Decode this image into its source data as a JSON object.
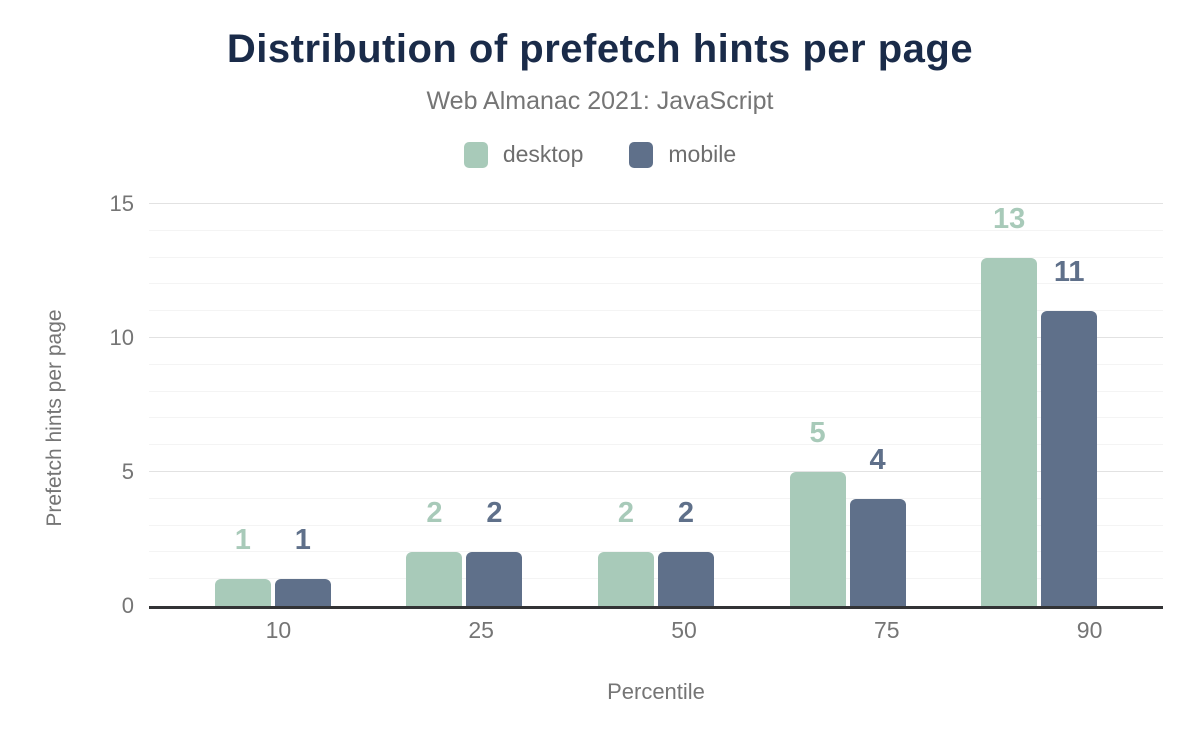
{
  "chart_data": {
    "type": "bar",
    "title": "Distribution of prefetch hints per page",
    "subtitle": "Web Almanac 2021: JavaScript",
    "categories": [
      "10",
      "25",
      "50",
      "75",
      "90"
    ],
    "series": [
      {
        "name": "desktop",
        "color": "#a8cab9",
        "values": [
          1,
          2,
          2,
          5,
          13
        ]
      },
      {
        "name": "mobile",
        "color": "#5f708a",
        "values": [
          1,
          2,
          2,
          4,
          11
        ]
      }
    ],
    "xlabel": "Percentile",
    "ylabel": "Prefetch hints per page",
    "ylim": [
      0,
      15
    ],
    "yticks": [
      0,
      5,
      10,
      15
    ],
    "minor_grid_step": 1,
    "major_grid_step": 5,
    "grid": true,
    "legend_position": "top"
  },
  "colors": {
    "title_text": "#1a2b49",
    "muted_text": "#757575",
    "axis_line": "#323335",
    "major_grid": "#e2e2e2",
    "minor_grid": "#f4f4f4",
    "background": "#ffffff"
  }
}
